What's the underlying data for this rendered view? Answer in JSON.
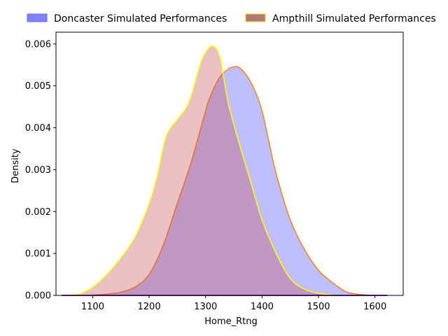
{
  "chart_data": {
    "type": "area",
    "xlabel": "Home_Rtng",
    "ylabel": "Density",
    "xlim": [
      1035,
      1650
    ],
    "ylim": [
      0,
      0.00628
    ],
    "xticks": [
      1100,
      1200,
      1300,
      1400,
      1500,
      1600
    ],
    "yticks": [
      0.0,
      0.001,
      0.002,
      0.003,
      0.004,
      0.005,
      0.006
    ],
    "ytick_labels": [
      "0.000",
      "0.001",
      "0.002",
      "0.003",
      "0.004",
      "0.005",
      "0.006"
    ],
    "grid": false,
    "legend_position": "top",
    "series": [
      {
        "name": "Doncaster Simulated Performances",
        "fill": "#8080ff",
        "fill_opacity": 0.5,
        "stroke": "#ff7f0e",
        "x": [
          1075,
          1100,
          1125,
          1150,
          1175,
          1200,
          1225,
          1250,
          1275,
          1300,
          1310,
          1325,
          1340,
          1350,
          1360,
          1375,
          1390,
          1400,
          1410,
          1425,
          1450,
          1475,
          1500,
          1525,
          1550,
          1575,
          1600,
          1622
        ],
        "y": [
          0.0,
          1e-05,
          3e-05,
          8e-05,
          0.0002,
          0.0005,
          0.0012,
          0.0022,
          0.0032,
          0.0044,
          0.0048,
          0.0052,
          0.0054,
          0.00545,
          0.00543,
          0.0052,
          0.0048,
          0.0044,
          0.0038,
          0.0029,
          0.0018,
          0.0011,
          0.0006,
          0.0003,
          8e-05,
          2e-05,
          0.0,
          0.0
        ]
      },
      {
        "name": "Ampthill Simulated Performances",
        "fill": "#c44e52",
        "fill_opacity": 0.35,
        "stroke": "#ffff00",
        "x": [
          1045,
          1075,
          1100,
          1125,
          1150,
          1175,
          1200,
          1215,
          1230,
          1250,
          1270,
          1290,
          1300,
          1312,
          1325,
          1340,
          1360,
          1380,
          1400,
          1425,
          1450,
          1475,
          1500,
          1525,
          1550,
          1580,
          1620
        ],
        "y": [
          0.0,
          3e-05,
          0.0002,
          0.0005,
          0.0009,
          0.0014,
          0.0022,
          0.0029,
          0.0038,
          0.0042,
          0.0046,
          0.0055,
          0.0058,
          0.00595,
          0.0057,
          0.0046,
          0.0036,
          0.0027,
          0.0018,
          0.001,
          0.0004,
          0.00015,
          5e-05,
          1e-05,
          0.0,
          0.0,
          0.0
        ]
      }
    ]
  }
}
